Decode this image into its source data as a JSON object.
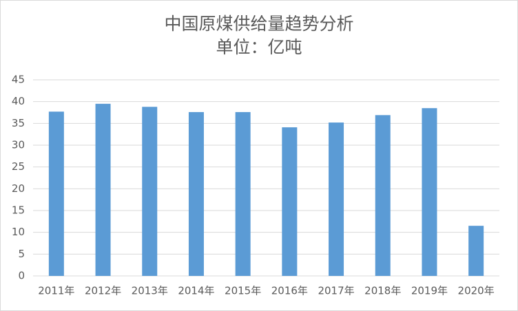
{
  "chart_data": {
    "type": "bar",
    "title": "中国原煤供给量趋势分析",
    "subtitle": "单位：亿吨",
    "categories": [
      "2011年",
      "2012年",
      "2013年",
      "2014年",
      "2015年",
      "2016年",
      "2017年",
      "2018年",
      "2019年",
      "2020年"
    ],
    "values": [
      37.7,
      39.5,
      38.8,
      37.6,
      37.6,
      34.1,
      35.2,
      36.9,
      38.5,
      11.5
    ],
    "color": "#5b9bd5",
    "ylim": [
      0,
      45
    ],
    "yticks": [
      0,
      5,
      10,
      15,
      20,
      25,
      30,
      35,
      40,
      45
    ],
    "grid": true
  }
}
